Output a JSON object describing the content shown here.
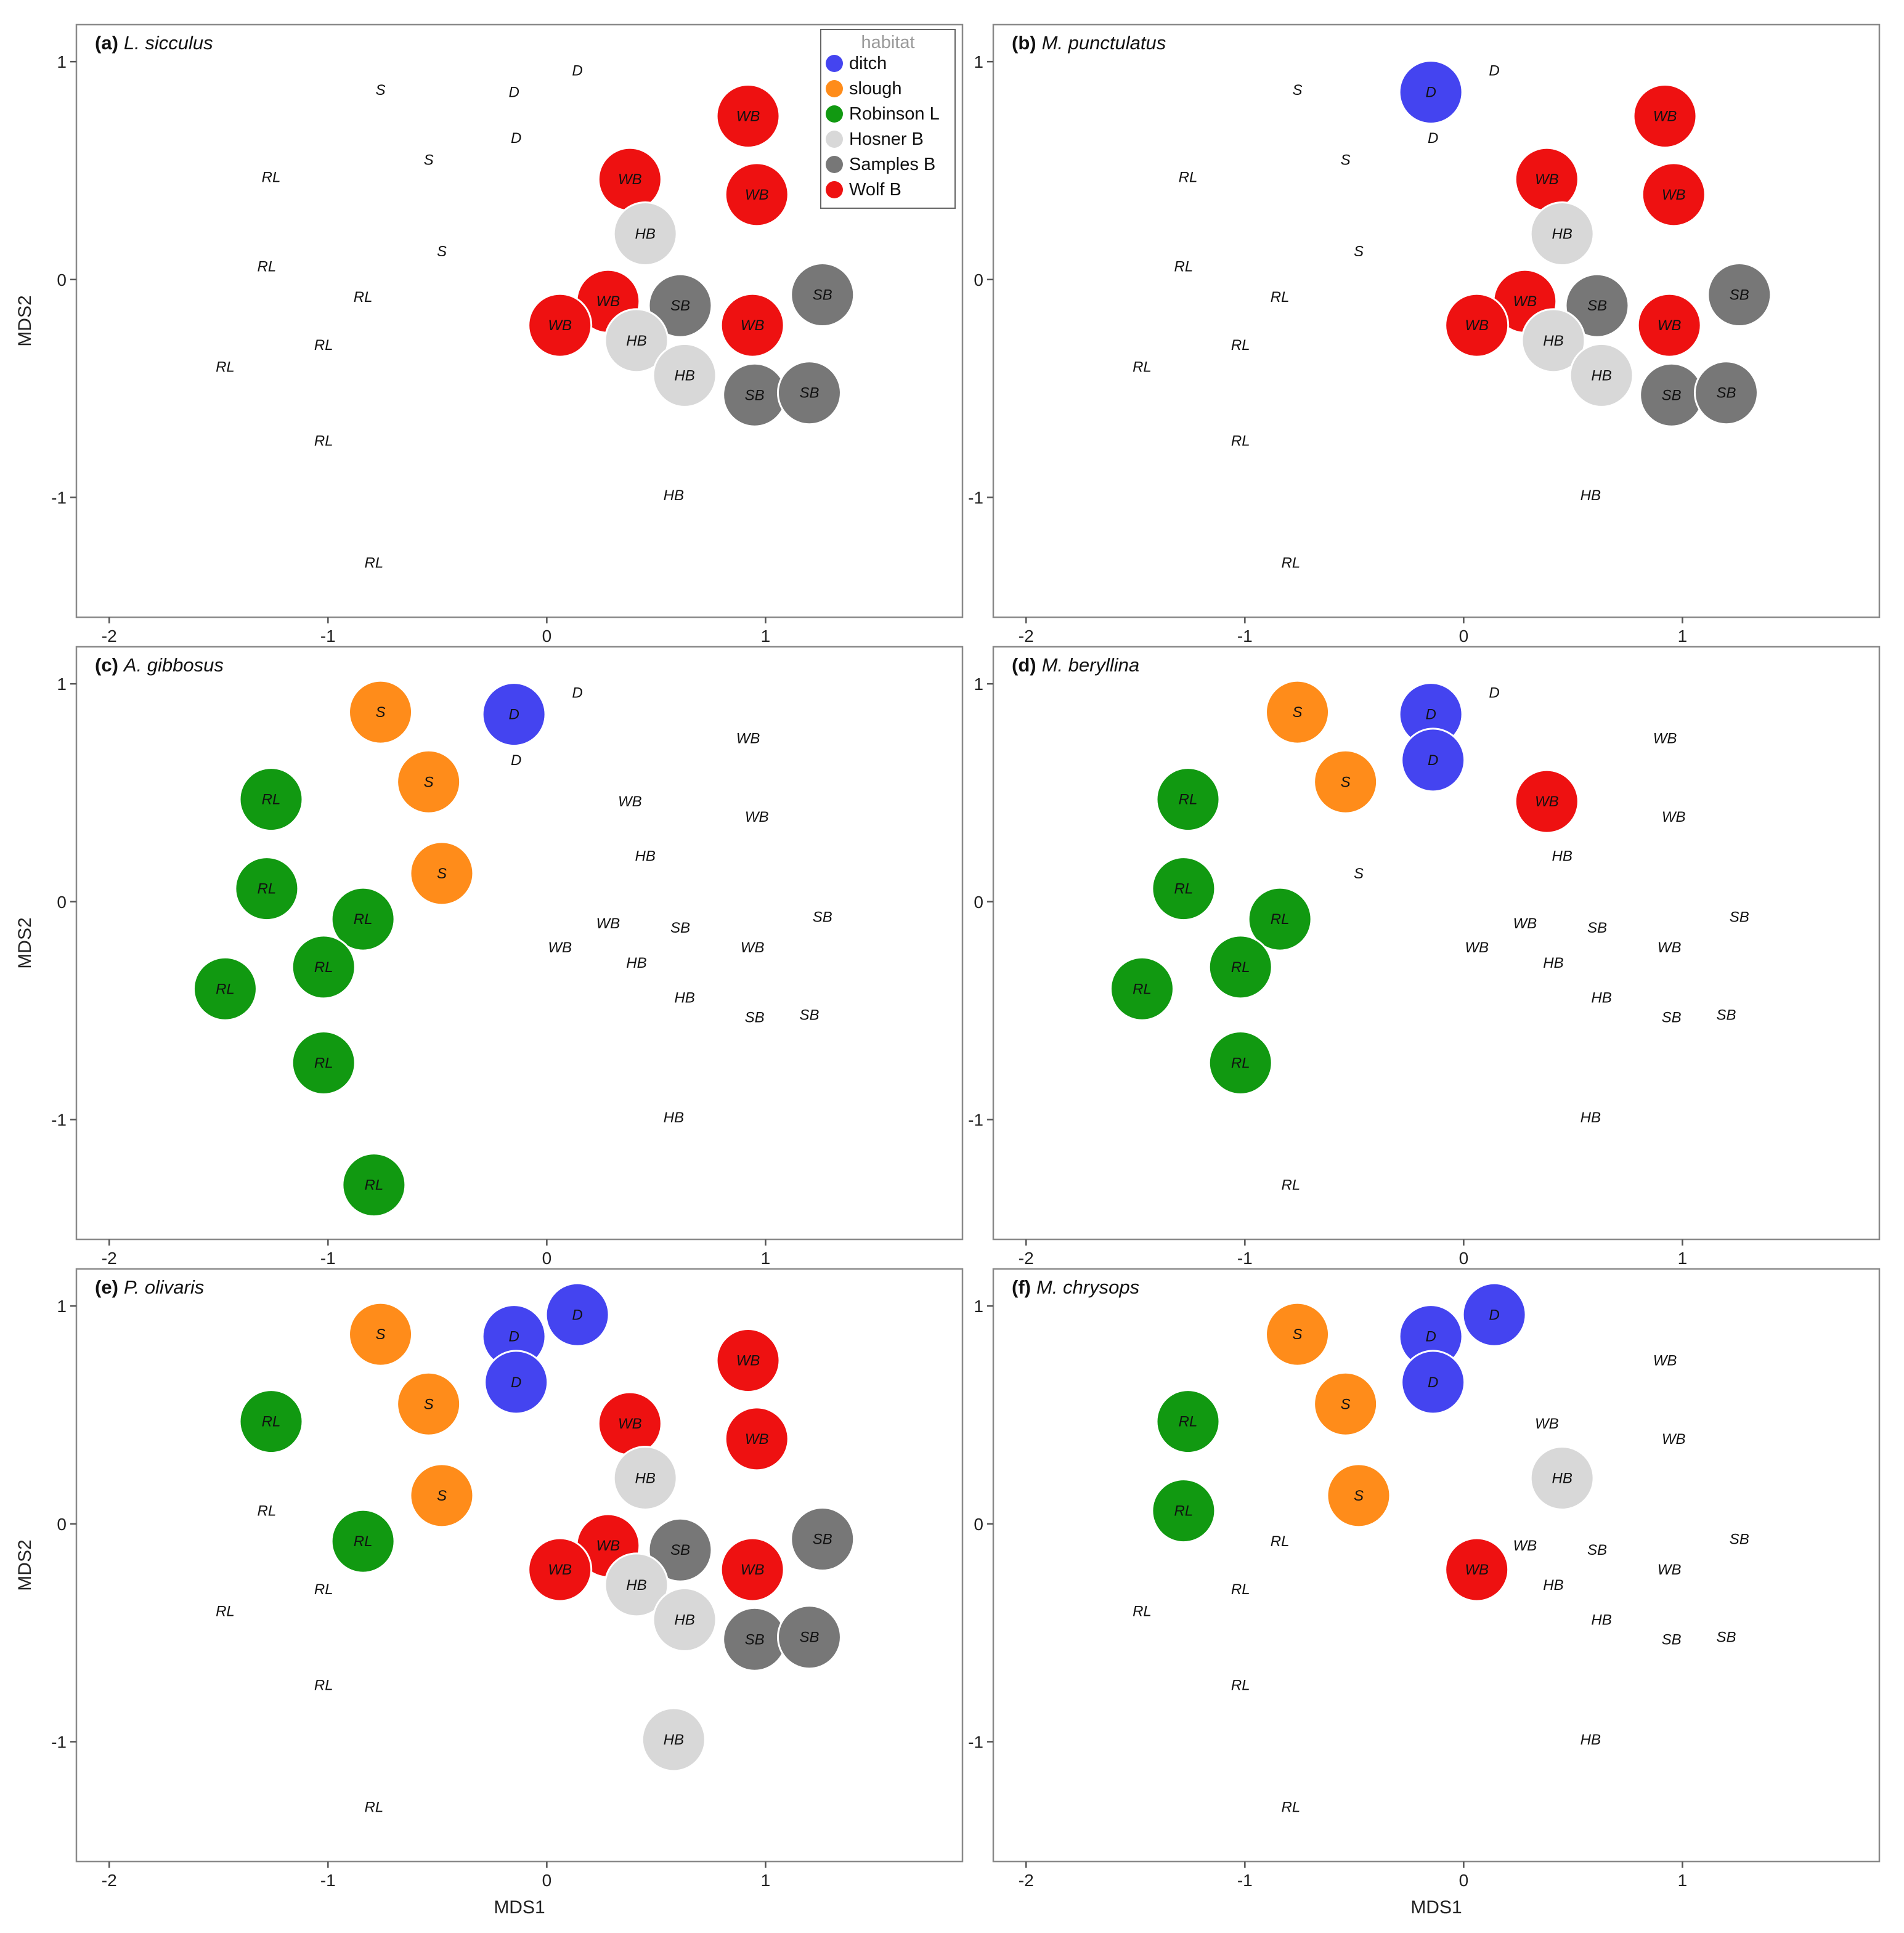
{
  "chart_data": {
    "type": "scatter",
    "x_label": "MDS1",
    "y_label": "MDS2",
    "xlim": [
      -2.15,
      1.9
    ],
    "ylim": [
      -1.55,
      1.17
    ],
    "x_ticks": [
      -2,
      -1,
      0,
      1
    ],
    "y_ticks": [
      -1,
      0,
      1
    ],
    "legend": {
      "title": "habitat",
      "placement": "top-right of panel (a)",
      "entries": [
        {
          "label": "ditch",
          "code": "D",
          "color": "#4444f0"
        },
        {
          "label": "slough",
          "code": "S",
          "color": "#ff8c1a"
        },
        {
          "label": "Robinson L",
          "code": "RL",
          "color": "#119911"
        },
        {
          "label": "Hosner B",
          "code": "HB",
          "color": "#d8d8d8"
        },
        {
          "label": "Samples B",
          "code": "SB",
          "color": "#777777"
        },
        {
          "label": "Wolf B",
          "code": "WB",
          "color": "#ee1111"
        }
      ]
    },
    "sites": [
      {
        "code": "S",
        "x": -0.76,
        "y": 0.87
      },
      {
        "code": "D",
        "x": -0.15,
        "y": 0.86
      },
      {
        "code": "D",
        "x": 0.14,
        "y": 0.96
      },
      {
        "code": "D",
        "x": -0.14,
        "y": 0.65
      },
      {
        "code": "S",
        "x": -0.54,
        "y": 0.55
      },
      {
        "code": "RL",
        "x": -1.26,
        "y": 0.47
      },
      {
        "code": "S",
        "x": -0.48,
        "y": 0.13
      },
      {
        "code": "RL",
        "x": -1.28,
        "y": 0.06
      },
      {
        "code": "RL",
        "x": -0.84,
        "y": -0.08
      },
      {
        "code": "RL",
        "x": -1.02,
        "y": -0.3
      },
      {
        "code": "RL",
        "x": -1.47,
        "y": -0.4
      },
      {
        "code": "RL",
        "x": -1.02,
        "y": -0.74
      },
      {
        "code": "RL",
        "x": -0.79,
        "y": -1.3
      },
      {
        "code": "WB",
        "x": 0.92,
        "y": 0.75
      },
      {
        "code": "WB",
        "x": 0.38,
        "y": 0.46
      },
      {
        "code": "WB",
        "x": 0.96,
        "y": 0.39
      },
      {
        "code": "HB",
        "x": 0.45,
        "y": 0.21
      },
      {
        "code": "WB",
        "x": 0.28,
        "y": -0.1
      },
      {
        "code": "SB",
        "x": 0.61,
        "y": -0.12
      },
      {
        "code": "WB",
        "x": 0.06,
        "y": -0.21
      },
      {
        "code": "WB",
        "x": 0.94,
        "y": -0.21
      },
      {
        "code": "SB",
        "x": 1.26,
        "y": -0.07
      },
      {
        "code": "HB",
        "x": 0.41,
        "y": -0.28
      },
      {
        "code": "HB",
        "x": 0.63,
        "y": -0.44
      },
      {
        "code": "SB",
        "x": 0.95,
        "y": -0.53
      },
      {
        "code": "SB",
        "x": 1.2,
        "y": -0.52
      },
      {
        "code": "HB",
        "x": 0.58,
        "y": -0.99
      }
    ],
    "panels": [
      {
        "tag": "(a)",
        "species": "L. sicculus",
        "present": [
          13,
          14,
          15,
          16,
          17,
          18,
          19,
          20,
          21,
          22,
          23,
          24,
          25
        ]
      },
      {
        "tag": "(b)",
        "species": "M. punctulatus",
        "present": [
          1,
          13,
          14,
          15,
          16,
          17,
          18,
          19,
          20,
          21,
          22,
          23,
          24,
          25
        ]
      },
      {
        "tag": "(c)",
        "species": "A. gibbosus",
        "present": [
          0,
          1,
          4,
          5,
          6,
          7,
          8,
          9,
          10,
          11,
          12
        ]
      },
      {
        "tag": "(d)",
        "species": "M. beryllina",
        "present": [
          0,
          1,
          3,
          4,
          5,
          7,
          8,
          9,
          10,
          11,
          14
        ]
      },
      {
        "tag": "(e)",
        "species": "P. olivaris",
        "present": [
          0,
          1,
          2,
          3,
          4,
          5,
          6,
          8,
          13,
          14,
          15,
          16,
          17,
          18,
          19,
          20,
          21,
          22,
          23,
          24,
          25,
          26
        ]
      },
      {
        "tag": "(f)",
        "species": "M. chrysops",
        "present": [
          0,
          1,
          2,
          3,
          4,
          5,
          6,
          7,
          16,
          19
        ]
      }
    ]
  }
}
